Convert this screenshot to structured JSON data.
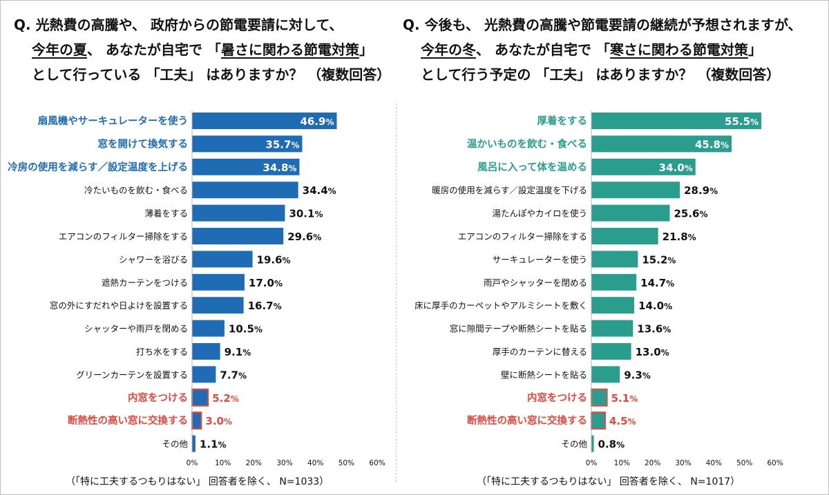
{
  "charts": [
    {
      "question": {
        "prefix": "Q.",
        "line1": "光熱費の高騰や、 政府からの節電要請に対して、",
        "line2_ul1": "今年の夏",
        "line2_mid": "、 あなたが自宅で 「",
        "line2_ul2": "暑さに関わる節電対策",
        "line2_end": "」",
        "line3": "として行っている 「工夫」 はありますか？ （複数回答）"
      },
      "note": "（「特に工夫するつもりはない」 回答者を除く、 N=1033）"
    },
    {
      "question": {
        "prefix": "Q.",
        "line1": "今後も、 光熱費の高騰や節電要請の継続が予想されますが、",
        "line2_ul1": "今年の冬",
        "line2_mid": "、 あなたが自宅で 「",
        "line2_ul2": "寒さに関わる節電対策",
        "line2_end": "」",
        "line3": "として行う予定の 「工夫」 はありますか？ （複数回答）"
      },
      "note": "（「特に工夫するつもりはない」 回答者を除く、 N=1017）"
    }
  ],
  "colors": {
    "summer": "#1f6cb5",
    "winter": "#2a9d8f",
    "highlight": "#e04a3f",
    "text": "#111111",
    "axis": "#b5b5b5"
  },
  "chart_data": [
    {
      "type": "bar",
      "orientation": "horizontal",
      "categories": [
        "扇風機やサーキュレーターを使う",
        "窓を開けて換気する",
        "冷房の使用を減らす／設定温度を上げる",
        "冷たいものを飲む・食べる",
        "薄着をする",
        "エアコンのフィルター掃除をする",
        "シャワーを浴びる",
        "遮熱カーテンをつける",
        "窓の外にすだれや日よけを設置する",
        "シャッターや雨戸を閉める",
        "打ち水をする",
        "グリーンカーテンを設置する",
        "内窓をつける",
        "断熱性の高い窓に交換する",
        "その他"
      ],
      "values": [
        46.9,
        35.7,
        34.8,
        34.4,
        30.1,
        29.6,
        19.6,
        17.0,
        16.7,
        10.5,
        9.1,
        7.7,
        5.2,
        3.0,
        1.1
      ],
      "value_labels": [
        "46.9",
        "35.7",
        "34.8",
        "34.4",
        "30.1",
        "29.6",
        "19.6",
        "17.0",
        "16.7",
        "10.5",
        "9.1",
        "7.7",
        "5.2",
        "3.0",
        "1.1"
      ],
      "top_highlight_count": 3,
      "red_highlight": [
        "内窓をつける",
        "断熱性の高い窓に交換する"
      ],
      "xlim": [
        0,
        60
      ],
      "xticks": [
        "0%",
        "10%",
        "20%",
        "30%",
        "40%",
        "50%",
        "60%"
      ],
      "grid": false
    },
    {
      "type": "bar",
      "orientation": "horizontal",
      "categories": [
        "厚着をする",
        "温かいものを飲む・食べる",
        "風呂に入って体を温める",
        "暖房の使用を減らす／設定温度を下げる",
        "湯たんぽやカイロを使う",
        "エアコンのフィルター掃除をする",
        "サーキュレーターを使う",
        "雨戸やシャッターを閉める",
        "床に厚手のカーペットやアルミシートを敷く",
        "窓に隙間テープや断熱シートを貼る",
        "厚手のカーテンに替える",
        "壁に断熱シートを貼る",
        "内窓をつける",
        "断熱性の高い窓に交換する",
        "その他"
      ],
      "values": [
        55.5,
        45.8,
        34.0,
        28.9,
        25.6,
        21.8,
        15.2,
        14.7,
        14.0,
        13.6,
        13.0,
        9.3,
        5.1,
        4.5,
        0.8
      ],
      "value_labels": [
        "55.5",
        "45.8",
        "34.0",
        "28.9",
        "25.6",
        "21.8",
        "15.2",
        "14.7",
        "14.0",
        "13.6",
        "13.0",
        "9.3",
        "5.1",
        "4.5",
        "0.8"
      ],
      "top_highlight_count": 3,
      "red_highlight": [
        "内窓をつける",
        "断熱性の高い窓に交換する"
      ],
      "xlim": [
        0,
        60
      ],
      "xticks": [
        "0%",
        "10%",
        "20%",
        "30%",
        "40%",
        "50%",
        "60%"
      ],
      "grid": false
    }
  ]
}
